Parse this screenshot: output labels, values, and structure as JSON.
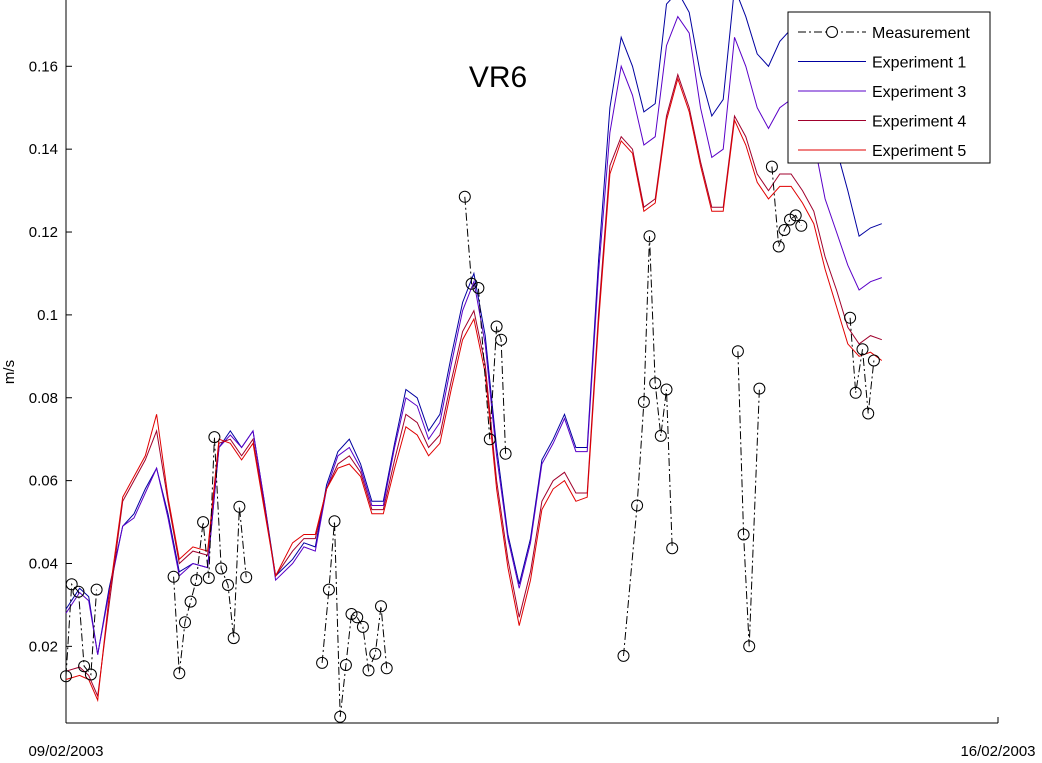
{
  "chart_data": {
    "type": "line",
    "title": "VR6",
    "ylabel": "m/s",
    "xlabel": "",
    "x_ticks": [
      "09/02/2003",
      "16/02/2003"
    ],
    "xlim": [
      0,
      7
    ],
    "ylim": [
      0.0015,
      0.176
    ],
    "y_ticks": [
      "0.02",
      "0.04",
      "0.06",
      "0.08",
      "0.1",
      "0.12",
      "0.14",
      "0.16"
    ],
    "y_tick_values": [
      0.02,
      0.04,
      0.06,
      0.08,
      0.1,
      0.12,
      0.14,
      0.16
    ],
    "grid": false,
    "legend": "top-right",
    "series": [
      {
        "name": "Measurement",
        "style": "dash-dot-circle",
        "color": "#000000",
        "segments": [
          {
            "x": [
              0.0,
              0.05,
              0.11,
              0.16,
              0.22,
              0.27
            ],
            "y": [
              0.0128,
              0.035,
              0.0332,
              0.0152,
              0.0132,
              0.0337
            ]
          },
          {
            "x": [
              0.95,
              1.0,
              1.05,
              1.1,
              1.15,
              1.21,
              1.26,
              1.31,
              1.37,
              1.43,
              1.48,
              1.53,
              1.59
            ],
            "y": [
              0.0368,
              0.0135,
              0.0258,
              0.0308,
              0.036,
              0.05,
              0.0365,
              0.0705,
              0.0388,
              0.0348,
              0.022,
              0.0537,
              0.0367
            ]
          },
          {
            "x": [
              2.26,
              2.32,
              2.37,
              2.42,
              2.47,
              2.52,
              2.57,
              2.62,
              2.67,
              2.73,
              2.78,
              2.83
            ],
            "y": [
              0.016,
              0.0337,
              0.0502,
              0.003,
              0.0155,
              0.0278,
              0.027,
              0.0247,
              0.0142,
              0.0182,
              0.0297,
              0.0147
            ]
          },
          {
            "x": [
              3.52,
              3.58,
              3.64,
              3.74,
              3.8,
              3.84,
              3.88
            ],
            "y": [
              0.1285,
              0.1075,
              0.1065,
              0.07,
              0.0972,
              0.094,
              0.0665
            ]
          },
          {
            "x": [
              4.92,
              5.04,
              5.1,
              5.15,
              5.2,
              5.25,
              5.3,
              5.35
            ],
            "y": [
              0.0177,
              0.054,
              0.079,
              0.119,
              0.0835,
              0.0708,
              0.082,
              0.0437
            ]
          },
          {
            "x": [
              5.93,
              5.98,
              6.03,
              6.12
            ],
            "y": [
              0.0912,
              0.047,
              0.02,
              0.0822
            ]
          },
          {
            "x": [
              6.23,
              6.29,
              6.34,
              6.39,
              6.44,
              6.49
            ],
            "y": [
              0.1358,
              0.1165,
              0.1205,
              0.123,
              0.124,
              0.1215
            ]
          },
          {
            "x": [
              6.92,
              6.97,
              7.03,
              7.08,
              7.13
            ],
            "y": [
              0.0993,
              0.0812,
              0.0917,
              0.0762,
              0.089
            ]
          }
        ]
      },
      {
        "name": "Experiment 1",
        "color": "#0000a0",
        "x": [
          0.0,
          0.12,
          0.2,
          0.28,
          0.38,
          0.5,
          0.6,
          0.7,
          0.8,
          0.9,
          1.0,
          1.12,
          1.25,
          1.35,
          1.45,
          1.55,
          1.65,
          1.75,
          1.85,
          2.0,
          2.1,
          2.2,
          2.3,
          2.4,
          2.5,
          2.6,
          2.7,
          2.8,
          2.9,
          3.0,
          3.1,
          3.2,
          3.3,
          3.4,
          3.5,
          3.6,
          3.7,
          3.8,
          3.9,
          4.0,
          4.1,
          4.2,
          4.3,
          4.4,
          4.5,
          4.6,
          4.7,
          4.8,
          4.9,
          5.0,
          5.1,
          5.2,
          5.3,
          5.4,
          5.5,
          5.6,
          5.7,
          5.8,
          5.9,
          6.0,
          6.1,
          6.2,
          6.3,
          6.4,
          6.5,
          6.6,
          6.7,
          6.8,
          6.9,
          7.0,
          7.1,
          7.2
        ],
        "y": [
          0.029,
          0.034,
          0.032,
          0.018,
          0.034,
          0.049,
          0.052,
          0.058,
          0.063,
          0.052,
          0.038,
          0.04,
          0.039,
          0.068,
          0.072,
          0.068,
          0.072,
          0.055,
          0.037,
          0.041,
          0.045,
          0.044,
          0.059,
          0.067,
          0.07,
          0.064,
          0.055,
          0.055,
          0.069,
          0.082,
          0.08,
          0.072,
          0.076,
          0.09,
          0.103,
          0.11,
          0.095,
          0.068,
          0.047,
          0.035,
          0.046,
          0.065,
          0.07,
          0.076,
          0.068,
          0.068,
          0.113,
          0.15,
          0.167,
          0.16,
          0.149,
          0.151,
          0.175,
          0.178,
          0.173,
          0.158,
          0.148,
          0.152,
          0.179,
          0.172,
          0.163,
          0.16,
          0.166,
          0.169,
          0.165,
          0.162,
          0.148,
          0.14,
          0.13,
          0.119,
          0.121,
          0.122
        ]
      },
      {
        "name": "Experiment 3",
        "color": "#5a00c8",
        "x": [
          0.0,
          0.12,
          0.2,
          0.28,
          0.38,
          0.5,
          0.6,
          0.7,
          0.8,
          0.9,
          1.0,
          1.12,
          1.25,
          1.35,
          1.45,
          1.55,
          1.65,
          1.75,
          1.85,
          2.0,
          2.1,
          2.2,
          2.3,
          2.4,
          2.5,
          2.6,
          2.7,
          2.8,
          2.9,
          3.0,
          3.1,
          3.2,
          3.3,
          3.4,
          3.5,
          3.6,
          3.7,
          3.8,
          3.9,
          4.0,
          4.1,
          4.2,
          4.3,
          4.4,
          4.5,
          4.6,
          4.7,
          4.8,
          4.9,
          5.0,
          5.1,
          5.2,
          5.3,
          5.4,
          5.5,
          5.6,
          5.7,
          5.8,
          5.9,
          6.0,
          6.1,
          6.2,
          6.3,
          6.4,
          6.5,
          6.6,
          6.7,
          6.8,
          6.9,
          7.0,
          7.1,
          7.2
        ],
        "y": [
          0.028,
          0.033,
          0.031,
          0.018,
          0.033,
          0.049,
          0.051,
          0.057,
          0.063,
          0.051,
          0.037,
          0.04,
          0.039,
          0.068,
          0.071,
          0.068,
          0.072,
          0.055,
          0.036,
          0.04,
          0.044,
          0.043,
          0.058,
          0.066,
          0.068,
          0.063,
          0.054,
          0.054,
          0.068,
          0.08,
          0.078,
          0.07,
          0.074,
          0.088,
          0.101,
          0.108,
          0.093,
          0.066,
          0.046,
          0.034,
          0.045,
          0.064,
          0.069,
          0.075,
          0.067,
          0.067,
          0.11,
          0.144,
          0.16,
          0.153,
          0.141,
          0.143,
          0.165,
          0.172,
          0.168,
          0.15,
          0.138,
          0.14,
          0.167,
          0.16,
          0.15,
          0.145,
          0.15,
          0.152,
          0.147,
          0.142,
          0.128,
          0.12,
          0.112,
          0.106,
          0.108,
          0.109
        ]
      },
      {
        "name": "Experiment 4",
        "color": "#a0002c",
        "x": [
          0.0,
          0.12,
          0.2,
          0.28,
          0.38,
          0.5,
          0.6,
          0.7,
          0.8,
          0.9,
          1.0,
          1.12,
          1.25,
          1.35,
          1.45,
          1.55,
          1.65,
          1.75,
          1.85,
          2.0,
          2.1,
          2.2,
          2.3,
          2.4,
          2.5,
          2.6,
          2.7,
          2.8,
          2.9,
          3.0,
          3.1,
          3.2,
          3.3,
          3.4,
          3.5,
          3.6,
          3.7,
          3.8,
          3.9,
          4.0,
          4.1,
          4.2,
          4.3,
          4.4,
          4.5,
          4.6,
          4.7,
          4.8,
          4.9,
          5.0,
          5.1,
          5.2,
          5.3,
          5.4,
          5.5,
          5.6,
          5.7,
          5.8,
          5.9,
          6.0,
          6.1,
          6.2,
          6.3,
          6.4,
          6.5,
          6.6,
          6.7,
          6.8,
          6.9,
          7.0,
          7.1,
          7.2
        ],
        "y": [
          0.014,
          0.015,
          0.013,
          0.008,
          0.03,
          0.055,
          0.06,
          0.065,
          0.072,
          0.055,
          0.04,
          0.043,
          0.042,
          0.069,
          0.07,
          0.066,
          0.07,
          0.054,
          0.037,
          0.043,
          0.046,
          0.046,
          0.058,
          0.064,
          0.066,
          0.062,
          0.053,
          0.053,
          0.065,
          0.076,
          0.074,
          0.068,
          0.071,
          0.084,
          0.096,
          0.101,
          0.088,
          0.06,
          0.041,
          0.027,
          0.038,
          0.055,
          0.06,
          0.062,
          0.057,
          0.057,
          0.1,
          0.136,
          0.143,
          0.14,
          0.126,
          0.128,
          0.148,
          0.158,
          0.15,
          0.137,
          0.126,
          0.126,
          0.148,
          0.143,
          0.134,
          0.13,
          0.134,
          0.134,
          0.13,
          0.125,
          0.114,
          0.106,
          0.097,
          0.093,
          0.095,
          0.094
        ]
      },
      {
        "name": "Experiment 5",
        "color": "#e00000",
        "x": [
          0.0,
          0.12,
          0.2,
          0.28,
          0.38,
          0.5,
          0.6,
          0.7,
          0.8,
          0.9,
          1.0,
          1.12,
          1.25,
          1.35,
          1.45,
          1.55,
          1.65,
          1.75,
          1.85,
          2.0,
          2.1,
          2.2,
          2.3,
          2.4,
          2.5,
          2.6,
          2.7,
          2.8,
          2.9,
          3.0,
          3.1,
          3.2,
          3.3,
          3.4,
          3.5,
          3.6,
          3.7,
          3.8,
          3.9,
          4.0,
          4.1,
          4.2,
          4.3,
          4.4,
          4.5,
          4.6,
          4.7,
          4.8,
          4.9,
          5.0,
          5.1,
          5.2,
          5.3,
          5.4,
          5.5,
          5.6,
          5.7,
          5.8,
          5.9,
          6.0,
          6.1,
          6.2,
          6.3,
          6.4,
          6.5,
          6.6,
          6.7,
          6.8,
          6.9,
          7.0,
          7.1,
          7.2
        ],
        "y": [
          0.012,
          0.013,
          0.012,
          0.007,
          0.032,
          0.056,
          0.061,
          0.066,
          0.076,
          0.056,
          0.041,
          0.044,
          0.043,
          0.07,
          0.069,
          0.065,
          0.069,
          0.053,
          0.037,
          0.045,
          0.047,
          0.047,
          0.058,
          0.063,
          0.064,
          0.061,
          0.052,
          0.052,
          0.063,
          0.073,
          0.071,
          0.066,
          0.069,
          0.082,
          0.094,
          0.099,
          0.086,
          0.058,
          0.039,
          0.025,
          0.036,
          0.053,
          0.058,
          0.06,
          0.055,
          0.056,
          0.098,
          0.134,
          0.142,
          0.139,
          0.125,
          0.127,
          0.147,
          0.157,
          0.149,
          0.136,
          0.125,
          0.125,
          0.147,
          0.141,
          0.132,
          0.128,
          0.131,
          0.131,
          0.127,
          0.122,
          0.111,
          0.102,
          0.093,
          0.09,
          0.091,
          0.089
        ]
      }
    ]
  }
}
